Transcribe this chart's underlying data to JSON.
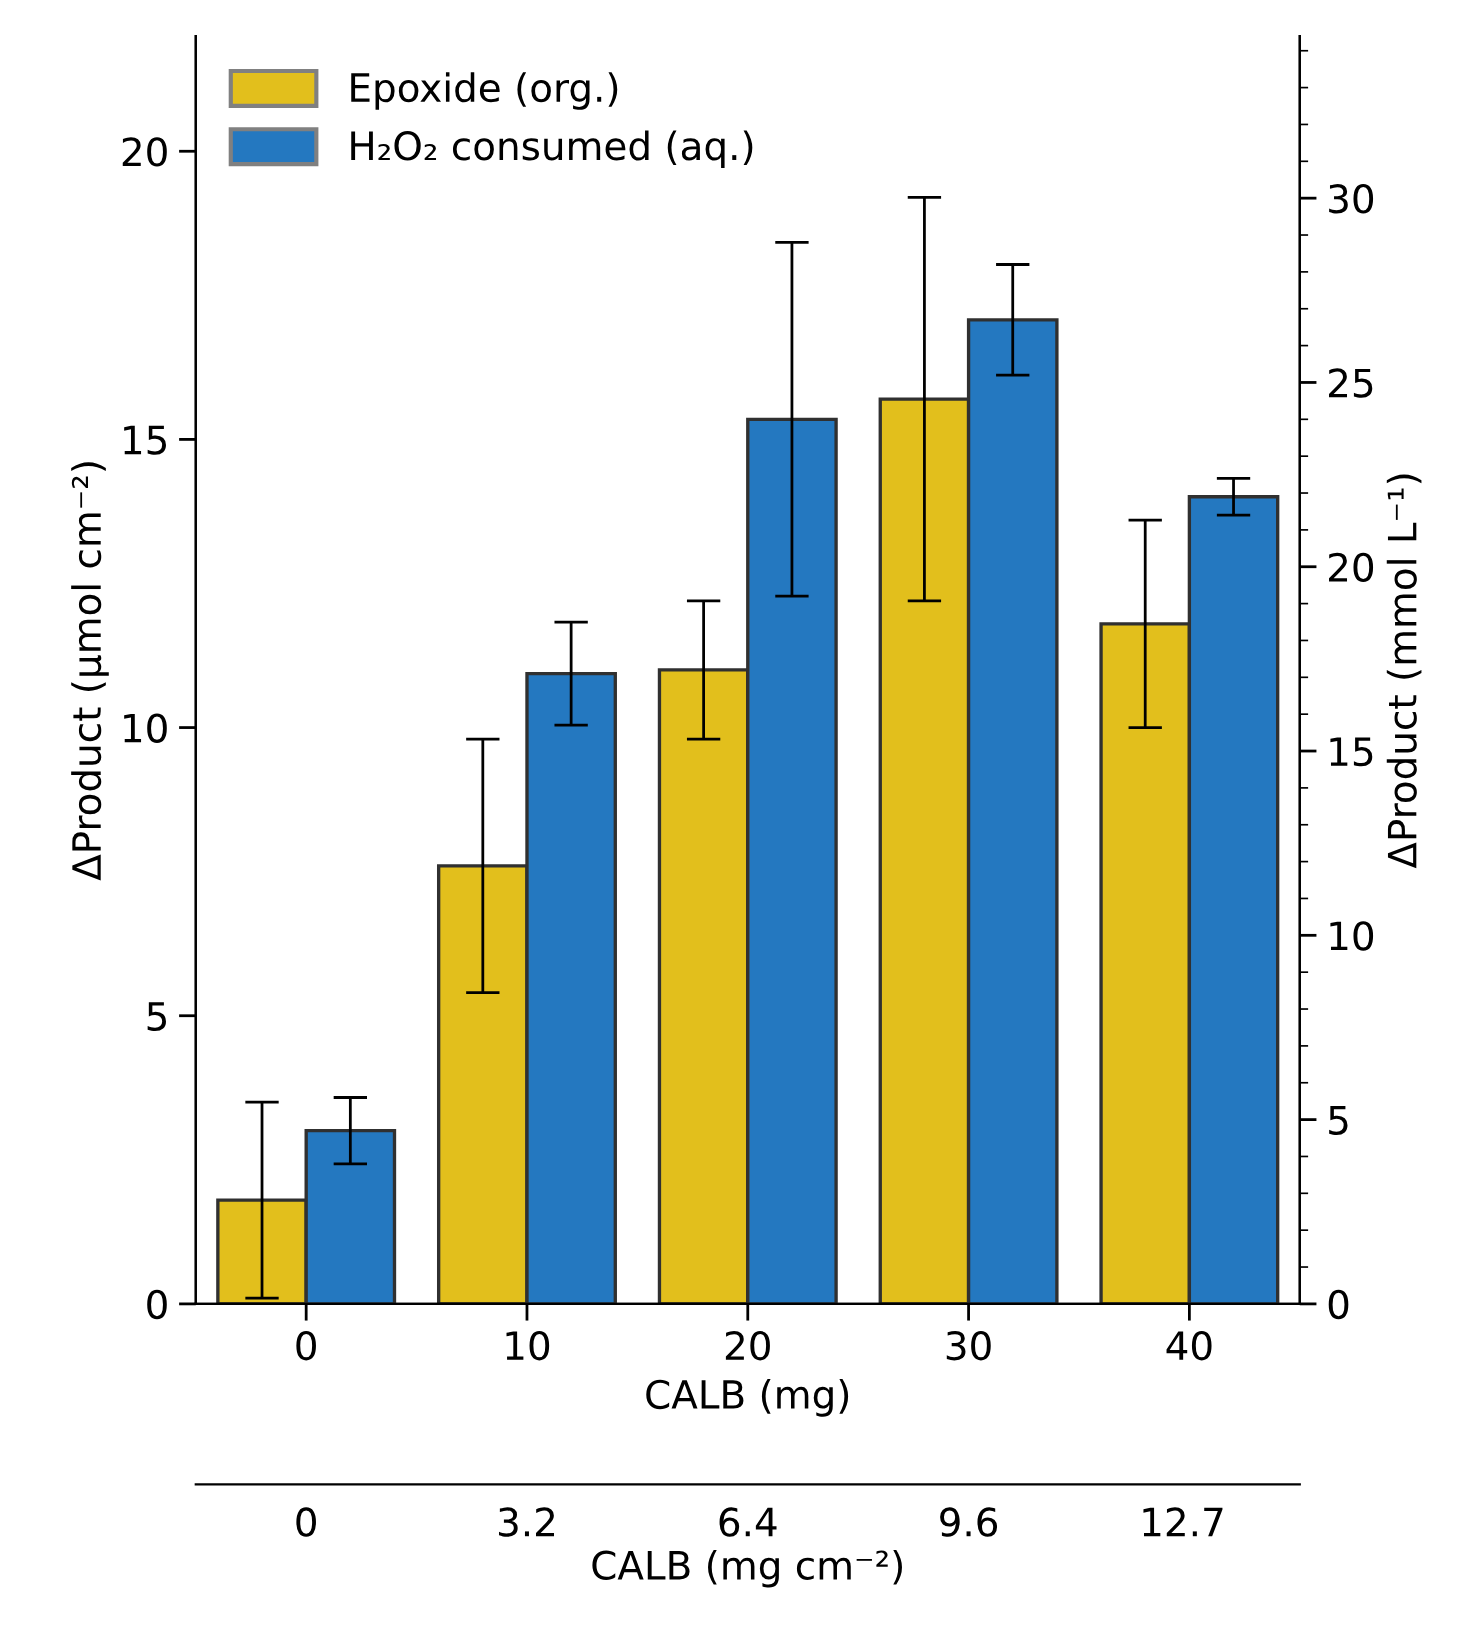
{
  "chart_data": {
    "type": "bar",
    "x": [
      0,
      10,
      20,
      30,
      40
    ],
    "xlim": [
      -5,
      45
    ],
    "xticks": [
      0,
      10,
      20,
      30,
      40
    ],
    "xlabel": "CALB (mg)",
    "x2lim": [
      -1.6,
      14.4
    ],
    "x2ticks": [
      0,
      3.2,
      6.4,
      9.6,
      12.7
    ],
    "x2label": "CALB (mg cm⁻²)",
    "ylim": [
      0,
      22
    ],
    "yticks": [
      0,
      5,
      10,
      15,
      20
    ],
    "ylabel": "ΔProduct (μmol cm⁻²)",
    "y2lim": [
      0,
      34.4
    ],
    "y2ticks": [
      0,
      5,
      10,
      15,
      20,
      25,
      30
    ],
    "y2label": "ΔProduct (mmol L⁻¹)",
    "series": [
      {
        "name": "Epoxide (org.)",
        "color": "#e2bf1c",
        "values": [
          1.8,
          7.6,
          11.0,
          15.7,
          11.8
        ],
        "errors": [
          1.7,
          2.2,
          1.2,
          3.5,
          1.8
        ]
      },
      {
        "name": "H₂O₂ consumed (aq.)",
        "color": "#2478c0",
        "axis": "y2",
        "values": [
          4.7,
          17.1,
          24.0,
          26.7,
          21.9
        ],
        "errors": [
          0.9,
          1.4,
          4.8,
          1.5,
          0.5
        ]
      }
    ],
    "legend": "top left",
    "grid": false
  }
}
